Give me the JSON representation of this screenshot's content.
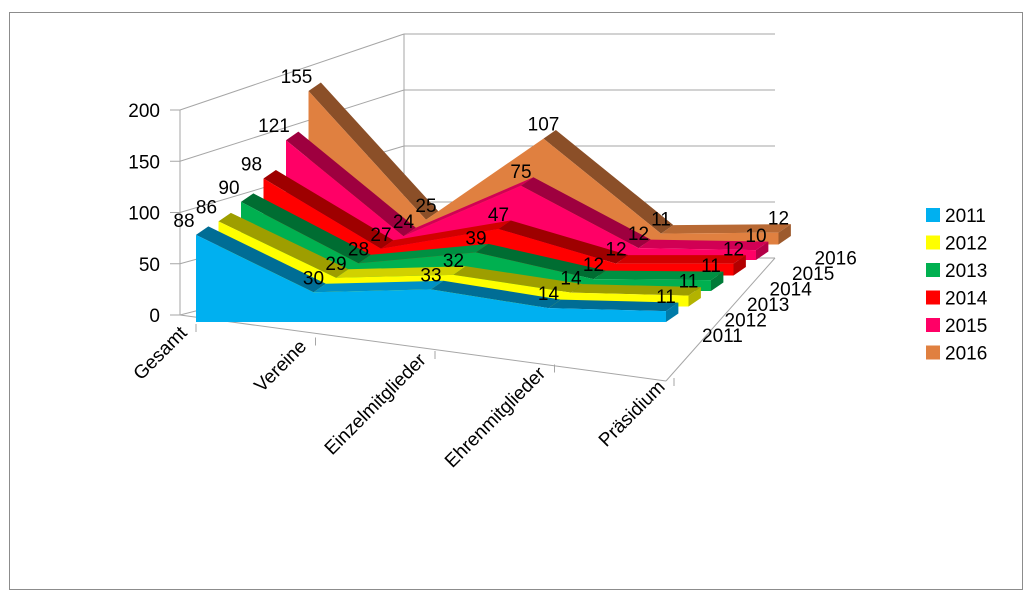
{
  "chart_data": {
    "type": "area",
    "variant": "3d-area",
    "title": "",
    "xlabel": "",
    "ylabel": "",
    "categories": [
      "Gesamt",
      "Vereine",
      "Einzelmitglieder",
      "Ehrenmitglieder",
      "Präsidium"
    ],
    "ylim": [
      0,
      200
    ],
    "yticks": [
      0,
      50,
      100,
      150,
      200
    ],
    "grid": true,
    "legend_position": "right",
    "series": [
      {
        "name": "2011",
        "color": "#00b0f0",
        "values": [
          88,
          30,
          33,
          14,
          11
        ]
      },
      {
        "name": "2012",
        "color": "#ffff00",
        "values": [
          86,
          29,
          32,
          14,
          11
        ]
      },
      {
        "name": "2013",
        "color": "#00b050",
        "values": [
          90,
          28,
          39,
          12,
          11
        ]
      },
      {
        "name": "2014",
        "color": "#ff0000",
        "values": [
          98,
          27,
          47,
          12,
          12
        ]
      },
      {
        "name": "2015",
        "color": "#ff0066",
        "values": [
          121,
          24,
          75,
          12,
          10
        ]
      },
      {
        "name": "2016",
        "color": "#e08040",
        "values": [
          155,
          25,
          107,
          11,
          12
        ]
      }
    ]
  }
}
